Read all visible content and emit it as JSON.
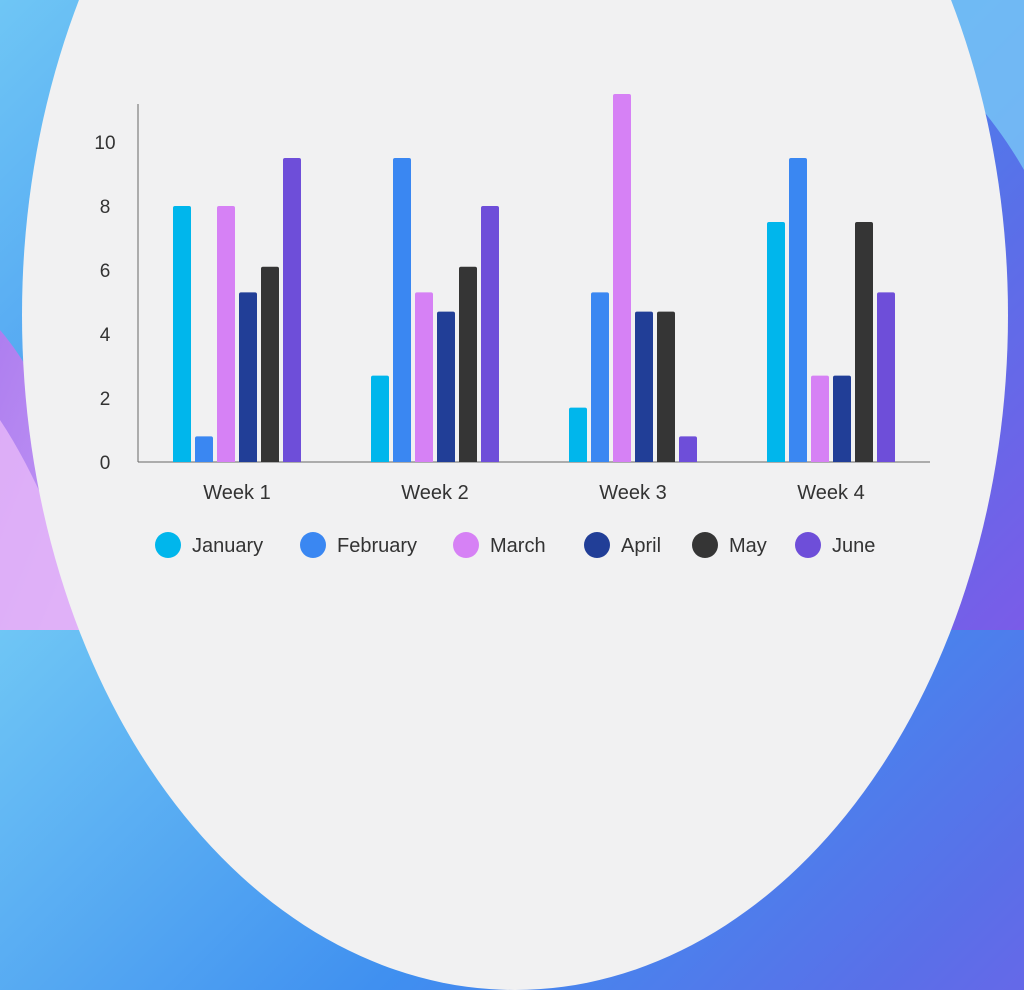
{
  "chart_data": {
    "type": "bar",
    "title": "",
    "xlabel": "",
    "ylabel": "",
    "categories": [
      "Week 1",
      "Week 2",
      "Week 3",
      "Week 4"
    ],
    "ylim": [
      0,
      11
    ],
    "yticks": [
      0,
      2,
      4,
      6,
      8,
      10
    ],
    "grid": false,
    "legend_position": "bottom",
    "series": [
      {
        "name": "January",
        "color": "#00b6ec",
        "values": [
          8,
          2.7,
          1.7,
          7.5
        ]
      },
      {
        "name": "February",
        "color": "#3a87f2",
        "values": [
          0.8,
          9.5,
          5.3,
          9.5
        ]
      },
      {
        "name": "March",
        "color": "#d681f5",
        "values": [
          8,
          5.3,
          11.5,
          2.7
        ]
      },
      {
        "name": "April",
        "color": "#213e97",
        "values": [
          5.3,
          4.7,
          4.7,
          2.7
        ]
      },
      {
        "name": "May",
        "color": "#353535",
        "values": [
          6.1,
          6.1,
          4.7,
          7.5
        ]
      },
      {
        "name": "June",
        "color": "#6e4ed9",
        "values": [
          9.5,
          8,
          0.8,
          5.3
        ]
      }
    ]
  }
}
